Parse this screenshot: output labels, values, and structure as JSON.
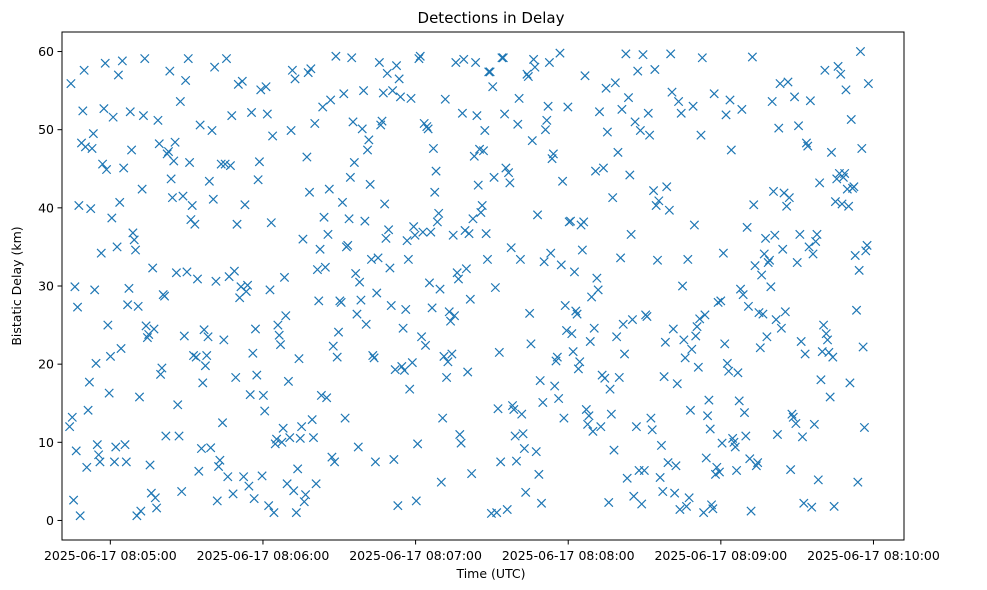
{
  "chart_data": {
    "type": "scatter",
    "title": "Detections in Delay",
    "xlabel": "Time (UTC)",
    "ylabel": "Bistatic Delay (km)",
    "x_start": "2025-06-17 08:04:44",
    "x_end": "2025-06-17 08:09:58",
    "xlim": [
      "2025-06-17 08:04:41",
      "2025-06-17 08:10:12"
    ],
    "ylim": [
      -2.5,
      62.5
    ],
    "x_ticks": [
      "2025-06-17 08:05:00",
      "2025-06-17 08:06:00",
      "2025-06-17 08:07:00",
      "2025-06-17 08:08:00",
      "2025-06-17 08:09:00",
      "2025-06-17 08:10:00"
    ],
    "y_ticks": [
      0,
      10,
      20,
      30,
      40,
      50,
      60
    ],
    "grid": false,
    "marker": "x",
    "marker_color": "#1f77b4",
    "y": [
      12.0,
      55.9,
      13.2,
      2.6,
      29.9,
      8.9,
      27.3,
      40.3,
      0.6,
      48.3,
      52.4,
      57.6,
      47.8,
      6.8,
      14.1,
      17.7,
      39.9,
      47.6,
      49.5,
      29.5,
      20.1,
      9.7,
      8.4,
      7.5,
      34.2,
      45.6,
      52.7,
      58.5,
      44.9,
      25.0,
      16.3,
      21.0,
      38.7,
      51.6,
      7.5,
      9.4,
      35.0,
      57.0,
      40.7,
      22.0,
      58.8,
      45.1,
      9.7,
      7.5,
      27.6,
      29.7,
      52.3,
      47.4,
      36.8,
      35.9,
      34.6,
      0.6,
      27.4,
      15.8,
      1.2,
      42.4,
      51.8,
      59.1,
      24.9,
      23.4,
      23.8,
      7.1,
      3.5,
      32.3,
      24.5,
      2.9,
      1.6,
      51.2,
      48.2,
      18.7,
      19.5,
      28.9,
      28.7,
      10.8,
      46.9,
      47.2,
      57.5,
      43.7,
      41.3,
      46.0,
      48.4,
      31.7,
      14.8,
      10.8,
      53.6,
      3.7,
      41.5,
      23.6,
      56.3,
      31.8,
      59.1,
      45.8,
      38.5,
      40.3,
      21.1,
      37.9,
      20.9,
      30.9,
      6.3,
      50.6,
      9.2,
      17.6,
      24.4,
      19.8,
      21.1,
      23.5,
      43.4,
      9.3,
      49.9,
      41.1,
      58.0,
      30.6,
      2.5,
      6.9,
      7.7,
      45.6,
      12.5,
      23.1,
      45.6,
      59.1,
      5.6,
      31.2,
      45.4,
      51.8,
      3.4,
      31.9,
      18.3,
      37.9,
      55.8,
      28.5,
      29.9,
      56.2,
      5.6,
      40.4,
      29.3,
      30.1,
      4.4,
      16.1,
      52.2,
      21.4,
      2.8,
      24.5,
      18.6,
      43.6,
      45.9,
      55.1,
      5.7,
      16.0,
      14.0,
      55.5,
      52.0,
      1.9,
      29.5,
      38.1,
      49.2,
      1.0,
      9.8,
      10.4,
      25.0,
      23.7,
      22.5,
      10.0,
      11.8,
      31.1,
      26.2,
      4.7,
      17.8,
      10.6,
      49.9,
      57.6,
      3.8,
      56.5,
      1.0,
      6.6,
      20.7,
      10.5,
      12.0,
      36.0,
      2.4,
      3.3,
      46.5,
      57.3,
      42.0,
      57.8,
      12.9,
      10.6,
      50.8,
      4.7,
      32.1,
      28.1,
      34.7,
      16.0,
      52.9,
      38.8,
      32.4,
      15.7,
      36.6,
      42.4,
      53.8,
      8.1,
      22.3,
      7.5,
      59.4,
      20.9,
      24.1,
      28.1,
      27.9,
      40.7,
      54.6,
      13.1,
      35.0,
      35.2,
      38.6,
      43.9,
      59.2,
      51.0,
      45.8,
      31.6,
      26.4,
      9.4,
      30.5,
      28.2,
      50.1,
      55.0,
      38.3,
      25.1,
      47.4,
      48.7,
      43.0,
      33.4,
      21.1,
      20.8,
      7.5,
      29.1,
      33.6,
      58.6,
      50.6,
      51.1,
      54.7,
      40.5,
      36.1,
      57.2,
      37.2,
      32.3,
      27.5,
      55.0,
      7.8,
      19.3,
      58.2,
      1.9,
      56.5,
      54.2,
      19.7,
      24.6,
      19.2,
      27.0,
      35.8,
      33.4,
      16.8,
      54.0,
      20.2,
      37.6,
      36.5,
      2.5,
      9.8,
      59.1,
      59.4,
      23.5,
      36.9,
      50.8,
      22.4,
      50.4,
      50.1,
      30.4,
      36.9,
      27.2,
      47.6,
      42.0,
      44.7,
      38.2,
      39.3,
      29.6,
      4.9,
      13.1,
      21.0,
      53.9,
      18.3,
      20.3,
      26.7,
      25.5,
      21.3,
      36.5,
      26.2,
      58.6,
      31.7,
      30.9,
      11.0,
      9.9,
      52.1,
      59.0,
      37.1,
      32.2,
      19.0,
      36.7,
      28.3,
      6.0,
      38.6,
      46.6,
      58.6,
      51.8,
      42.9,
      47.5,
      39.4,
      40.3,
      47.3,
      49.9,
      36.7,
      33.4,
      57.4,
      57.4,
      0.9,
      55.5,
      43.9,
      29.8,
      1.0,
      14.3,
      21.5,
      7.5,
      59.2,
      59.2,
      52.0,
      45.1,
      1.4,
      44.5,
      43.2,
      34.9,
      14.7,
      14.2,
      10.8,
      7.6,
      50.7,
      54.0,
      33.4,
      13.6,
      11.1,
      9.2,
      3.6,
      57.1,
      56.8,
      26.5,
      22.6,
      48.6,
      59.0,
      58.0,
      8.8,
      39.1,
      5.9,
      17.9,
      2.2,
      15.1,
      33.1,
      50.0,
      51.2,
      53.0,
      58.6,
      34.2,
      46.3,
      46.9,
      17.2,
      20.4,
      20.9,
      15.6,
      59.8,
      32.7,
      43.4,
      13.1,
      27.5,
      24.3,
      52.9,
      38.2,
      38.3,
      23.9,
      21.6,
      31.8,
      26.8,
      26.4,
      19.4,
      20.3,
      37.8,
      34.6,
      38.2,
      56.9,
      14.2,
      12.3,
      13.4,
      22.9,
      28.6,
      11.4,
      24.6,
      44.7,
      31.0,
      29.5,
      52.3,
      12.0,
      18.6,
      45.1,
      18.2,
      55.3,
      49.7,
      2.3,
      16.8,
      13.6,
      41.3,
      9.0,
      56.0,
      23.5,
      47.1,
      18.3,
      33.6,
      52.6,
      25.1,
      21.3,
      59.7,
      5.4,
      54.1,
      44.2,
      36.6,
      25.7,
      3.1,
      51.0,
      12.0,
      57.5,
      6.4,
      49.9,
      2.1,
      59.6,
      6.4,
      26.3,
      26.1,
      52.1,
      49.3,
      13.1,
      11.6,
      42.2,
      57.7,
      40.3,
      33.3,
      40.9,
      5.5,
      9.6,
      3.7,
      18.4,
      22.8,
      42.7,
      7.4,
      39.7,
      59.7,
      54.8,
      24.5,
      3.5,
      7.0,
      17.5,
      53.6,
      1.4,
      52.1,
      30.0,
      23.1,
      20.8,
      1.8,
      33.4,
      2.9,
      14.1,
      21.9,
      53.0,
      37.8,
      23.6,
      24.8,
      19.6,
      25.8,
      49.3,
      59.2,
      1.0,
      26.3,
      8.0,
      13.4,
      15.4,
      11.7,
      2.0,
      1.5,
      54.6,
      5.9,
      6.8,
      27.9,
      6.2,
      28.1,
      9.9,
      34.2,
      22.6,
      51.9,
      20.1,
      19.1,
      53.8,
      47.4,
      10.5,
      10.0,
      9.4,
      6.4,
      18.9,
      15.3,
      29.6,
      52.6,
      28.9,
      13.8,
      10.8,
      37.5,
      27.4,
      7.9,
      1.2,
      59.3,
      40.4,
      32.6,
      7.0,
      7.4,
      26.6,
      22.1,
      31.4,
      26.4,
      34.1,
      36.1,
      23.5,
      33.0,
      33.3,
      29.9,
      53.6,
      42.1,
      36.5,
      25.7,
      11.0,
      50.2,
      55.9,
      24.6,
      34.7,
      41.9,
      26.7,
      40.2,
      56.1,
      41.3,
      6.5,
      13.6,
      13.2,
      54.2,
      12.4,
      33.0,
      50.5,
      36.6,
      22.9,
      10.7,
      2.2,
      21.3,
      48.3,
      47.9,
      35.0,
      53.7,
      1.7,
      34.1,
      12.3,
      35.7,
      36.6,
      5.2,
      43.2,
      18.0,
      21.6,
      25.0,
      57.6,
      23.9,
      23.1,
      21.5,
      15.8,
      47.1,
      20.9,
      1.8,
      40.8,
      43.7,
      58.1,
      44.4,
      57.1,
      40.5,
      43.9,
      44.4,
      55.1,
      42.4,
      40.2,
      17.6,
      51.3,
      42.5,
      42.7,
      33.9,
      26.9,
      4.9,
      32.0,
      60.0,
      47.6,
      22.2,
      11.9,
      34.5,
      35.2,
      55.9
    ]
  }
}
